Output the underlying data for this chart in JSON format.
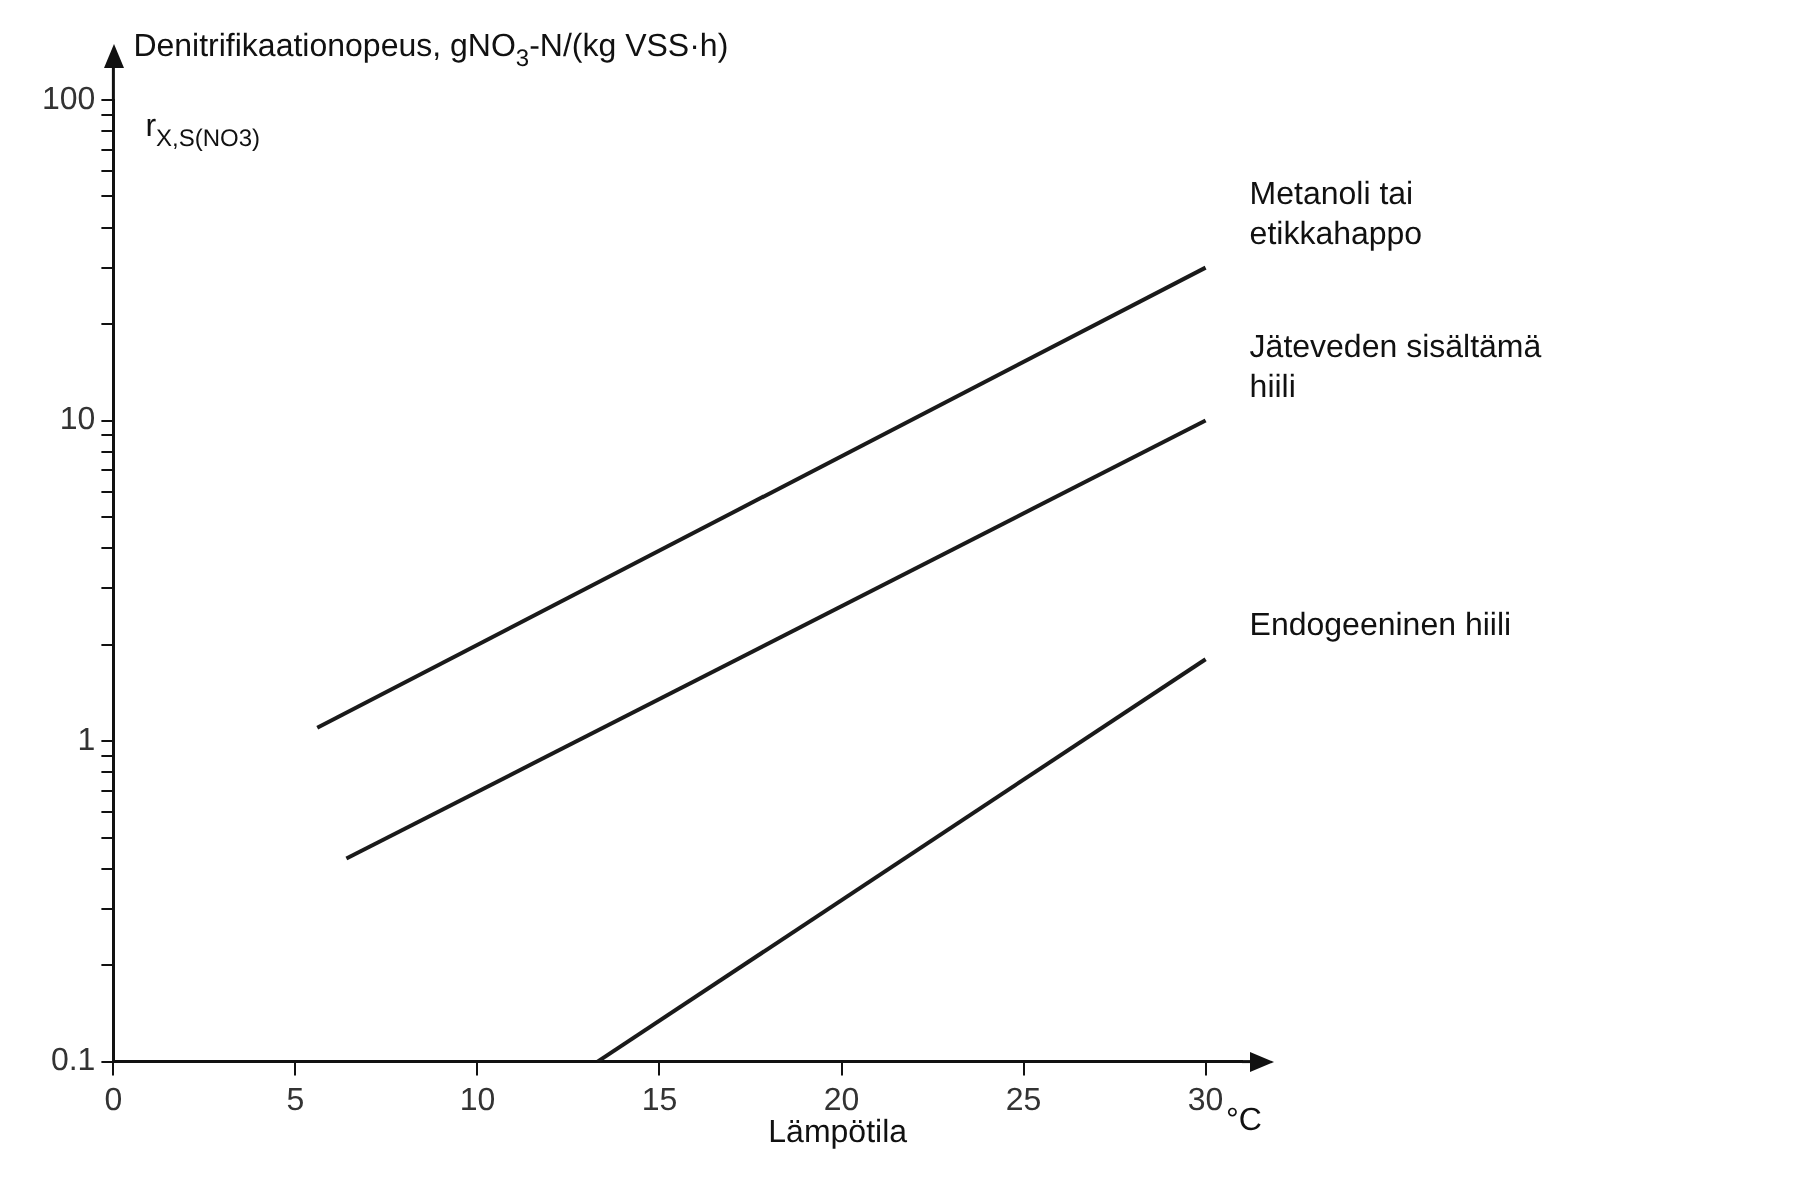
{
  "chart_data": {
    "type": "line",
    "ylabel": "Denitrifikaationopeus, gNO$_{3}$-N/(kg VSS·h)",
    "xlabel": "Lämpötila",
    "annotations": [
      "r$_{X,S(NO3)}$",
      "°C"
    ],
    "log": "y",
    "grid": false,
    "legend": false,
    "marker": "none",
    "line_style": "solid",
    "xlim": [
      0,
      31
    ],
    "xticks": [
      0,
      5,
      10,
      15,
      20,
      25,
      30
    ],
    "ylim": [
      0.1,
      100
    ],
    "yticks": [
      0.1,
      {
        "value": 0.2,
        "label": null
      },
      {
        "value": 0.3,
        "label": null
      },
      {
        "value": 0.4,
        "label": null
      },
      {
        "value": 0.5,
        "label": null
      },
      {
        "value": 0.6,
        "label": null
      },
      {
        "value": 0.7,
        "label": null
      },
      {
        "value": 0.8,
        "label": null
      },
      {
        "value": 0.9,
        "label": null
      },
      1,
      {
        "value": 2,
        "label": null
      },
      {
        "value": 3,
        "label": null
      },
      {
        "value": 4,
        "label": null
      },
      {
        "value": 5,
        "label": null
      },
      {
        "value": 6,
        "label": null
      },
      {
        "value": 7,
        "label": null
      },
      {
        "value": 8,
        "label": null
      },
      {
        "value": 9,
        "label": null
      },
      10,
      {
        "value": 20,
        "label": null
      },
      {
        "value": 30,
        "label": null
      },
      {
        "value": 40,
        "label": null
      },
      {
        "value": 50,
        "label": null
      },
      {
        "value": 60,
        "label": null
      },
      {
        "value": 70,
        "label": null
      },
      {
        "value": 80,
        "label": null
      },
      {
        "value": 90,
        "label": null
      },
      100
    ],
    "series": [
      {
        "name": "Metanoli tai etikkahappo",
        "color": "#1a1a1a",
        "x": [
          5.6,
          30
        ],
        "values": [
          1.1,
          30
        ]
      },
      {
        "name": "Jäteveden sisältämä hiili",
        "color": "#1a1a1a",
        "x": [
          6.4,
          30
        ],
        "values": [
          0.43,
          10
        ]
      },
      {
        "name": "Endogeeninen hiili",
        "color": "#1a1a1a",
        "x": [
          13.3,
          30
        ],
        "values": [
          0.1,
          1.8
        ]
      }
    ]
  }
}
